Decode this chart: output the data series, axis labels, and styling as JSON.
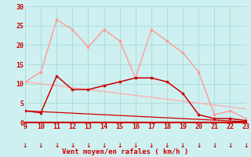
{
  "x": [
    9,
    10,
    11,
    12,
    13,
    14,
    15,
    16,
    17,
    18,
    19,
    20,
    21,
    22,
    23
  ],
  "rafales": [
    10.5,
    13,
    26.5,
    24,
    19.5,
    24,
    21,
    11.5,
    24,
    21,
    18,
    13,
    2,
    3,
    1
  ],
  "vent_moyen": [
    3,
    2.5,
    12,
    8.5,
    8.5,
    9.5,
    10.5,
    11.5,
    11.5,
    10.5,
    7.5,
    2,
    1,
    1,
    0.5
  ],
  "tendance_haute": [
    10.5,
    10.0,
    9.5,
    9.0,
    8.5,
    8.0,
    7.5,
    7.0,
    6.5,
    6.0,
    5.5,
    5.0,
    4.5,
    4.0,
    3.5
  ],
  "tendance_basse": [
    3.0,
    2.8,
    2.6,
    2.4,
    2.2,
    2.0,
    1.8,
    1.6,
    1.4,
    1.2,
    1.0,
    0.8,
    0.6,
    0.4,
    0.2
  ],
  "bg_color": "#cff0f0",
  "grid_color": "#aadddd",
  "line_color_rafales": "#ff9999",
  "line_color_vent": "#cc0000",
  "line_color_tend_high": "#ffaaaa",
  "line_color_tend_low": "#cc0000",
  "arrow_color": "#cc0000",
  "xlabel": "Vent moyen/en rafales ( km/h )",
  "xlabel_color": "#cc0000",
  "tick_color": "#cc0000",
  "ylim": [
    0,
    30
  ],
  "xlim": [
    9,
    23
  ],
  "yticks": [
    0,
    5,
    10,
    15,
    20,
    25,
    30
  ],
  "xticks": [
    9,
    10,
    11,
    12,
    13,
    14,
    15,
    16,
    17,
    18,
    19,
    20,
    21,
    22,
    23
  ]
}
